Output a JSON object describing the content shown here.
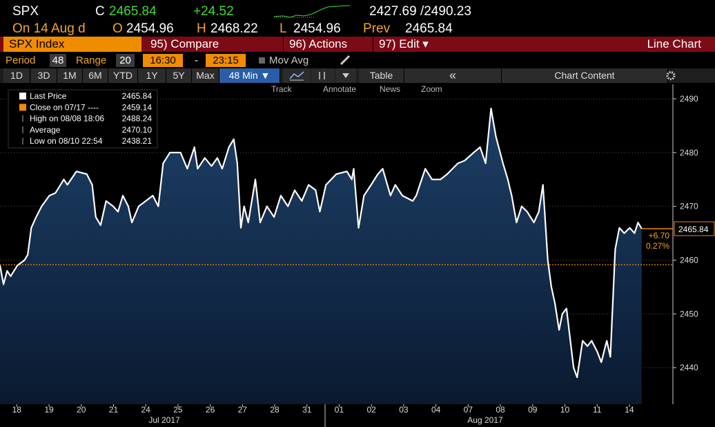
{
  "header": {
    "ticker": "SPX",
    "c_label": "C",
    "last": "2465.84",
    "change": "+24.52",
    "range": "2427.69 /2490.23"
  },
  "quote": {
    "date_label": "On 14 Aug d",
    "open_label": "O",
    "open": "2454.96",
    "high_label": "H",
    "high": "2468.22",
    "low_label": "L",
    "low": "2454.96",
    "prev_label": "Prev",
    "prev": "2465.84"
  },
  "menu": {
    "security": "SPX Index",
    "compare": "95) Compare",
    "actions": "96) Actions",
    "edit": "97) Edit ▾",
    "chart_type": "Line Chart"
  },
  "settings": {
    "period_label": "Period",
    "period": "48",
    "range_label": "Range",
    "range": "20",
    "start": "16:30",
    "dash": "-",
    "end": "23:15",
    "mov_avg": "Mov Avg"
  },
  "tabs": {
    "periods": [
      "1D",
      "3D",
      "1M",
      "6M",
      "YTD",
      "1Y",
      "5Y",
      "Max"
    ],
    "interval": "48 Min ▼",
    "table": "Table",
    "collapse": "«",
    "chart_content": "Chart Content"
  },
  "chart_tools": [
    "Track",
    "Annotate",
    "News",
    "Zoom"
  ],
  "legend_box": [
    {
      "label": "Close on 07/17 ----"
    },
    {
      "label": "High on 08/08 18:06",
      "value": "2488.24"
    },
    {
      "label": "Average",
      "value": "2470.10"
    },
    {
      "label": "Low on 08/10 22:54",
      "value": "2438.21"
    }
  ],
  "chart_data": {
    "type": "line",
    "x": [
      -0.52,
      -0.41,
      -0.3,
      -0.19,
      0.02,
      0.24,
      0.34,
      0.45,
      0.6,
      0.77,
      1.01,
      1.2,
      1.46,
      1.57,
      1.85,
      2.17,
      2.34,
      2.45,
      2.6,
      2.77,
      2.99,
      3.14,
      3.29,
      3.46,
      3.57,
      3.78,
      4.0,
      4.22,
      4.39,
      4.54,
      4.75,
      5.08,
      5.29,
      5.51,
      5.61,
      5.83,
      6.04,
      6.22,
      6.37,
      6.58,
      6.73,
      6.84,
      6.95,
      7.05,
      7.18,
      7.4,
      7.55,
      7.76,
      7.98,
      8.19,
      8.41,
      8.62,
      8.84,
      9.05,
      9.27,
      9.4,
      9.59,
      9.91,
      10.24,
      10.39,
      10.45,
      10.6,
      10.77,
      10.99,
      11.2,
      11.35,
      11.59,
      11.74,
      11.96,
      12.28,
      12.39,
      12.67,
      12.88,
      13.14,
      13.35,
      13.68,
      13.89,
      14.17,
      14.37,
      14.54,
      14.71,
      14.86,
      15.08,
      15.23,
      15.35,
      15.5,
      15.66,
      15.83,
      16.04,
      16.19,
      16.32,
      16.47,
      16.58,
      16.69,
      16.82,
      16.92,
      17.05,
      17.27,
      17.38,
      17.55,
      17.7,
      17.83,
      18.0,
      18.13,
      18.3,
      18.41,
      18.56,
      18.69,
      18.84,
      19.01,
      19.16,
      19.27,
      19.38
    ],
    "series": [
      {
        "name": "Last Price",
        "color": "#ffffff",
        "values": [
          2459,
          2455.5,
          2458,
          2457,
          2459,
          2460,
          2461,
          2466,
          2468,
          2470,
          2472,
          2472.5,
          2475,
          2474,
          2476.5,
          2476,
          2474,
          2468,
          2466.5,
          2471,
          2470,
          2469,
          2472,
          2470,
          2467,
          2470,
          2471,
          2472,
          2470,
          2478,
          2480,
          2480,
          2477,
          2481,
          2477,
          2479,
          2477.5,
          2479,
          2477,
          2481,
          2482.5,
          2478,
          2466,
          2470,
          2467,
          2475,
          2467,
          2470,
          2468,
          2472,
          2470,
          2473,
          2471,
          2474,
          2473,
          2469,
          2474,
          2476,
          2476.5,
          2475,
          2477,
          2466,
          2472,
          2474,
          2476,
          2477,
          2472,
          2474,
          2472,
          2471,
          2472,
          2477,
          2475,
          2475,
          2476,
          2478,
          2478.5,
          2480,
          2481,
          2478,
          2488.2,
          2483,
          2478,
          2475,
          2472,
          2467,
          2470,
          2469,
          2467,
          2469,
          2474,
          2460,
          2455,
          2452,
          2447,
          2450,
          2451,
          2440,
          2438.2,
          2445,
          2444,
          2445,
          2443,
          2441,
          2445,
          2442,
          2462,
          2466,
          2465,
          2466,
          2465,
          2467,
          2465.84
        ]
      }
    ],
    "close_ref": 2459.14,
    "change_label": "+6.70",
    "change_pct_label": "0.27%",
    "xlim": [
      -0.52,
      20.35
    ],
    "xticks": [
      {
        "value": 0,
        "label": "18"
      },
      {
        "value": 1,
        "label": "19"
      },
      {
        "value": 2,
        "label": "20"
      },
      {
        "value": 3,
        "label": "21"
      },
      {
        "value": 4,
        "label": "24"
      },
      {
        "value": 5,
        "label": "25"
      },
      {
        "value": 6,
        "label": "26"
      },
      {
        "value": 7,
        "label": "27"
      },
      {
        "value": 8,
        "label": "28"
      },
      {
        "value": 9,
        "label": "31"
      },
      {
        "value": 10,
        "label": "01"
      },
      {
        "value": 11,
        "label": "02"
      },
      {
        "value": 12,
        "label": "03"
      },
      {
        "value": 13,
        "label": "04"
      },
      {
        "value": 14,
        "label": "07"
      },
      {
        "value": 15,
        "label": "08"
      },
      {
        "value": 16,
        "label": "09"
      },
      {
        "value": 17,
        "label": "10"
      },
      {
        "value": 18,
        "label": "11"
      },
      {
        "value": 19,
        "label": "14"
      }
    ],
    "x_groups": [
      "Jul 2017",
      "Aug 2017"
    ],
    "ylim": [
      2433.2,
      2492.7
    ],
    "yticks": [
      2440,
      2450,
      2460,
      2470,
      2480,
      2490
    ],
    "grid": true
  }
}
